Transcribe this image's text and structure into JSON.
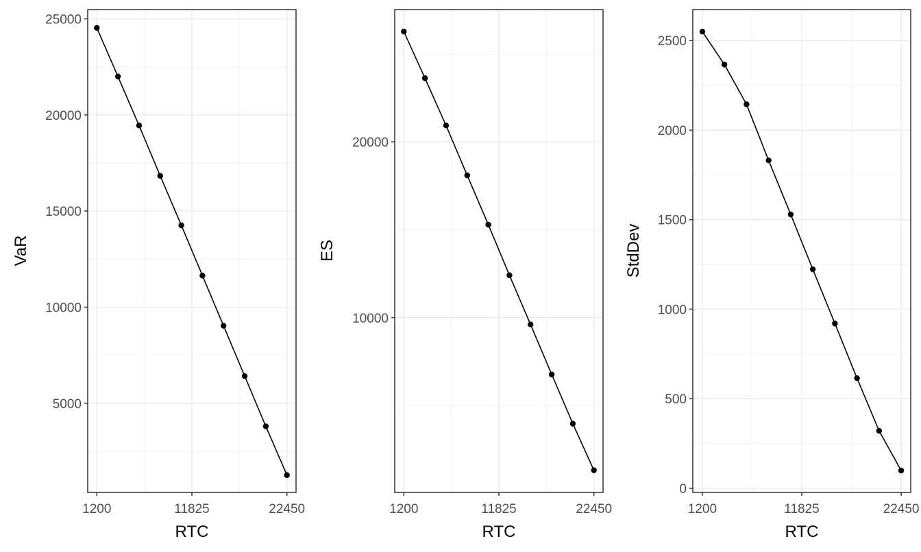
{
  "chart_data": [
    {
      "type": "line",
      "title": "",
      "xlabel": "RTC",
      "ylabel": "VaR",
      "x": [
        1200,
        3561,
        5922,
        8283,
        10644,
        13006,
        15367,
        17728,
        20089,
        22450
      ],
      "values": [
        24530,
        22000,
        19450,
        16830,
        14260,
        11640,
        9030,
        6410,
        3800,
        1260
      ],
      "xticks": [
        1200,
        11825,
        22450
      ],
      "yticks": [
        5000,
        10000,
        15000,
        20000,
        25000
      ],
      "xlim": [
        180,
        23470
      ],
      "ylim": [
        360,
        25480
      ],
      "grid": true,
      "legend": null
    },
    {
      "type": "line",
      "title": "",
      "xlabel": "RTC",
      "ylabel": "ES",
      "x": [
        1200,
        3561,
        5922,
        8283,
        10644,
        13006,
        15367,
        17728,
        20089,
        22450
      ],
      "values": [
        26270,
        23620,
        20930,
        18090,
        15290,
        12410,
        9610,
        6770,
        3970,
        1320
      ],
      "xticks": [
        1200,
        11825,
        22450
      ],
      "yticks": [
        10000,
        20000
      ],
      "xlim": [
        180,
        23470
      ],
      "ylim": [
        60,
        27520
      ],
      "grid": true,
      "legend": null
    },
    {
      "type": "line",
      "title": "",
      "xlabel": "RTC",
      "ylabel": "StdDev",
      "x": [
        1200,
        3561,
        5922,
        8283,
        10644,
        13006,
        15367,
        17728,
        20089,
        22450
      ],
      "values": [
        2550,
        2366,
        2144,
        1831,
        1529,
        1223,
        920,
        615,
        321,
        99
      ],
      "xticks": [
        1200,
        11825,
        22450
      ],
      "yticks": [
        0,
        500,
        1000,
        1500,
        2000,
        2500
      ],
      "xlim": [
        180,
        23470
      ],
      "ylim": [
        -23,
        2673
      ],
      "grid": true,
      "legend": null
    }
  ],
  "panels": [
    {
      "ylabel": "VaR",
      "xlabel": "RTC",
      "x_tick_labels": [
        "1200",
        "11825",
        "22450"
      ],
      "y_tick_labels": [
        "5000",
        "10000",
        "15000",
        "20000",
        "25000"
      ]
    },
    {
      "ylabel": "ES",
      "xlabel": "RTC",
      "x_tick_labels": [
        "1200",
        "11825",
        "22450"
      ],
      "y_tick_labels": [
        "10000",
        "20000"
      ]
    },
    {
      "ylabel": "StdDev",
      "xlabel": "RTC",
      "x_tick_labels": [
        "1200",
        "11825",
        "22450"
      ],
      "y_tick_labels": [
        "0",
        "500",
        "1000",
        "1500",
        "2000",
        "2500"
      ]
    }
  ],
  "colors": {
    "line": "#000000",
    "point": "#000000",
    "panel_border": "#333333",
    "grid_major": "#ebebeb",
    "grid_minor": "#f2f2f2",
    "tick_text": "#4d4d4d"
  }
}
